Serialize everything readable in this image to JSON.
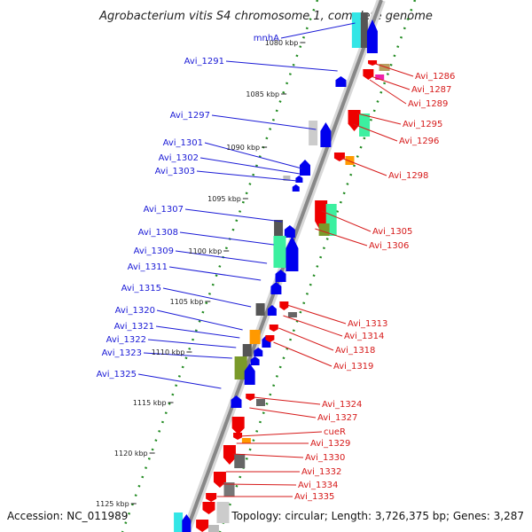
{
  "title": "Agrobacterium vitis S4 chromosome 1, complete genome",
  "footer": {
    "accession": "Accession: NC_011989",
    "topology": "Topology: circular; Length: 3,726,375 bp; Genes: 3,287"
  },
  "scale_labels": [
    "1080 kbp",
    "1085 kbp",
    "1090 kbp",
    "1095 kbp",
    "1100 kbp",
    "1105 kbp",
    "1110 kbp",
    "1115 kbp",
    "1120 kbp",
    "1125 kbp"
  ],
  "left_labels": [
    "mnhA",
    "Avi_1291",
    "Avi_1297",
    "Avi_1301",
    "Avi_1302",
    "Avi_1303",
    "Avi_1307",
    "Avi_1308",
    "Avi_1309",
    "Avi_1311",
    "Avi_1315",
    "Avi_1320",
    "Avi_1321",
    "Avi_1322",
    "Avi_1323",
    "Avi_1325"
  ],
  "right_labels": [
    "Avi_1286",
    "Avi_1287",
    "Avi_1289",
    "Avi_1295",
    "Avi_1296",
    "Avi_1298",
    "Avi_1305",
    "Avi_1306",
    "Avi_1313",
    "Avi_1314",
    "Avi_1318",
    "Avi_1319",
    "Avi_1324",
    "Avi_1327",
    "cueR",
    "Avi_1329",
    "Avi_1330",
    "Avi_1332",
    "Avi_1334",
    "Avi_1335"
  ],
  "colors": {
    "forward_strand": "#0000ee",
    "reverse_strand": "#ee0000",
    "backbone": "#888888",
    "tick": "#228b22",
    "feature_green": "#3cf0a0",
    "feature_olive": "#7a9a2a",
    "feature_orange": "#ff9900",
    "feature_gray": "#666666",
    "feature_cyan": "#33e6e6",
    "feature_magenta": "#ee22aa",
    "feature_tan": "#b8a060"
  }
}
